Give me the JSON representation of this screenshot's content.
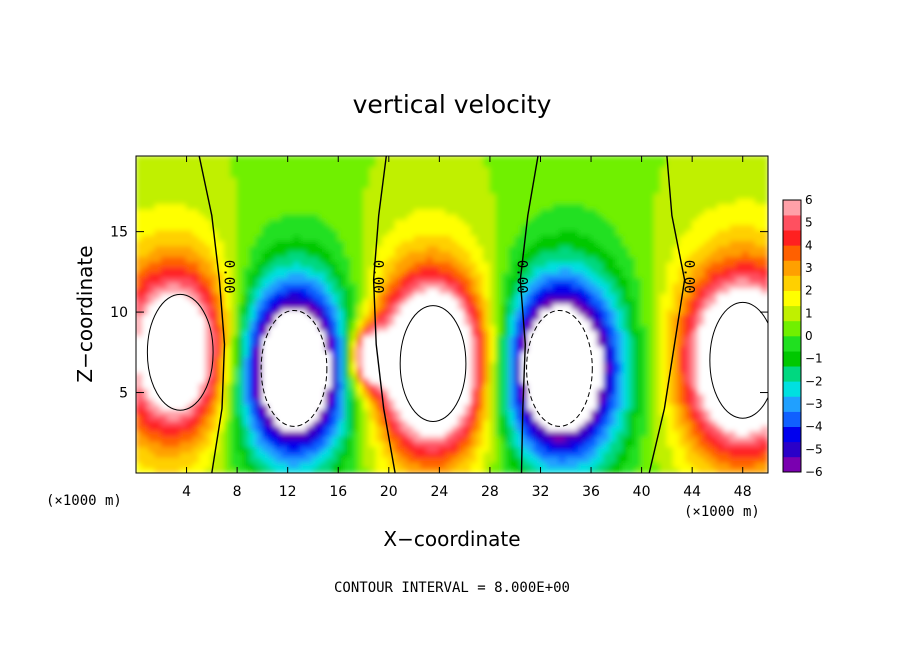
{
  "chart_data": {
    "type": "heatmap",
    "title": "vertical velocity",
    "xlabel": "X−coordinate",
    "ylabel": "Z−coordinate",
    "x_unit_left": "(×1000 m)",
    "x_unit_right": "(×1000 m)",
    "footer": "CONTOUR INTERVAL = 8.000E+00",
    "xlim": [
      0,
      50
    ],
    "ylim": [
      0,
      19.7
    ],
    "x_ticks": [
      "4",
      "8",
      "12",
      "16",
      "20",
      "24",
      "28",
      "32",
      "36",
      "40",
      "44",
      "48"
    ],
    "x_tick_values": [
      4,
      8,
      12,
      16,
      20,
      24,
      28,
      32,
      36,
      40,
      44,
      48
    ],
    "y_ticks": [
      "5",
      "10",
      "15"
    ],
    "y_tick_values": [
      5,
      10,
      15
    ],
    "colorbar": {
      "range": [
        -6,
        6
      ],
      "labels": [
        "6",
        "5",
        "4",
        "3",
        "2",
        "1",
        "0",
        "−1",
        "−2",
        "−3",
        "−4",
        "−5",
        "−6"
      ],
      "label_values": [
        6,
        5,
        4,
        3,
        2,
        1,
        0,
        -1,
        -2,
        -3,
        -4,
        -5,
        -6
      ],
      "colors": [
        "#7a00b0",
        "#2a00c8",
        "#0000ee",
        "#1060ff",
        "#20a0ff",
        "#00e0e0",
        "#00d880",
        "#00c800",
        "#20e020",
        "#70f000",
        "#c0f000",
        "#ffff00",
        "#ffd000",
        "#ffa000",
        "#ff6000",
        "#ff2020",
        "#ff5060",
        "#ffa0a8"
      ]
    },
    "zero_contour_label": "0.00",
    "zero_contour_labels_x": [
      7.0,
      18.8,
      30.2,
      43.4
    ],
    "zero_contour_label_z": 12.2,
    "updraft_cells": [
      {
        "x": 3.5,
        "z": 7.5,
        "w": 7
      },
      {
        "x": 23.5,
        "z": 6.8,
        "w": 9
      },
      {
        "x": 48,
        "z": 7.0,
        "w": 8
      },
      {
        "x": 18.5,
        "z": 7.2,
        "w": 6
      }
    ],
    "downdraft_cells": [
      {
        "x": 12.5,
        "z": 6.5,
        "w": -9
      },
      {
        "x": 33.5,
        "z": 6.5,
        "w": -9
      }
    ]
  }
}
